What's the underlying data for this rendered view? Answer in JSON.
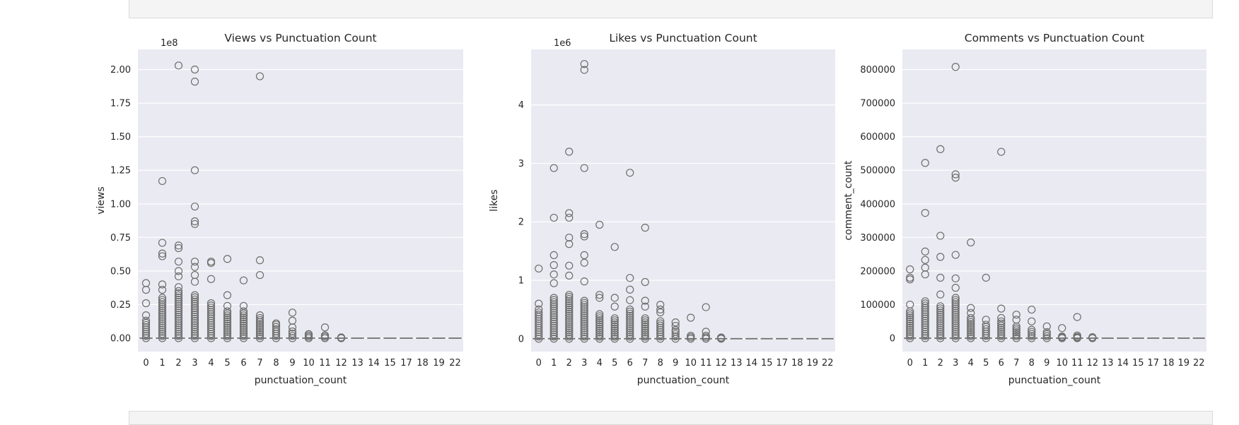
{
  "chart_data": [
    {
      "type": "boxplot",
      "title": "Views vs Punctuation Count",
      "xlabel": "punctuation_count",
      "ylabel": "views",
      "offset_label": "1e8",
      "categories": [
        "0",
        "1",
        "2",
        "3",
        "4",
        "5",
        "6",
        "7",
        "8",
        "9",
        "10",
        "11",
        "12",
        "13",
        "14",
        "15",
        "17",
        "18",
        "19",
        "22"
      ],
      "ylim": [
        -0.1,
        2.15
      ],
      "yticks": [
        0,
        0.25,
        0.5,
        0.75,
        1.0,
        1.25,
        1.5,
        1.75,
        2.0
      ],
      "ytick_labels": [
        "0.00",
        "0.25",
        "0.50",
        "0.75",
        "1.00",
        "1.25",
        "1.50",
        "1.75",
        "2.00"
      ],
      "outlier_max": [
        0.41,
        1.17,
        2.03,
        2.0,
        0.57,
        0.59,
        0.43,
        1.95,
        0.11,
        0.19,
        0.03,
        0.08,
        0.005,
        0,
        0,
        0,
        0,
        0,
        0,
        0
      ],
      "extra_outliers": [
        [
          0,
          0.36
        ],
        [
          0,
          0.26
        ],
        [
          0,
          0.17
        ],
        [
          1,
          0.71
        ],
        [
          1,
          0.63
        ],
        [
          1,
          0.61
        ],
        [
          1,
          0.4
        ],
        [
          1,
          0.36
        ],
        [
          2,
          0.69
        ],
        [
          2,
          0.67
        ],
        [
          2,
          0.57
        ],
        [
          2,
          0.5
        ],
        [
          2,
          0.46
        ],
        [
          2,
          0.38
        ],
        [
          3,
          1.91
        ],
        [
          3,
          1.25
        ],
        [
          3,
          0.98
        ],
        [
          3,
          0.87
        ],
        [
          3,
          0.85
        ],
        [
          3,
          0.57
        ],
        [
          3,
          0.53
        ],
        [
          3,
          0.47
        ],
        [
          3,
          0.42
        ],
        [
          4,
          0.56
        ],
        [
          4,
          0.44
        ],
        [
          5,
          0.32
        ],
        [
          5,
          0.24
        ],
        [
          6,
          0.24
        ],
        [
          7,
          0.58
        ],
        [
          7,
          0.47
        ],
        [
          7,
          0.17
        ],
        [
          9,
          0.13
        ],
        [
          9,
          0.08
        ],
        [
          11,
          0.02
        ]
      ],
      "dense_top": [
        0.13,
        0.3,
        0.35,
        0.32,
        0.26,
        0.2,
        0.2,
        0.15,
        0.1,
        0.05,
        0.02,
        0.02,
        0.005,
        0,
        0,
        0,
        0,
        0,
        0,
        0
      ]
    },
    {
      "type": "boxplot",
      "title": "Likes vs Punctuation Count",
      "xlabel": "punctuation_count",
      "ylabel": "likes",
      "offset_label": "1e6",
      "categories": [
        "0",
        "1",
        "2",
        "3",
        "4",
        "5",
        "6",
        "7",
        "8",
        "9",
        "10",
        "11",
        "12",
        "13",
        "14",
        "15",
        "17",
        "18",
        "19",
        "22"
      ],
      "ylim": [
        -0.22,
        4.95
      ],
      "yticks": [
        0,
        1,
        2,
        3,
        4
      ],
      "ytick_labels": [
        "0",
        "1",
        "2",
        "3",
        "4"
      ],
      "outlier_max": [
        1.2,
        2.92,
        3.2,
        4.7,
        1.95,
        1.57,
        2.84,
        1.9,
        0.58,
        0.28,
        0.36,
        0.54,
        0.02,
        0,
        0,
        0,
        0,
        0,
        0,
        0
      ],
      "extra_outliers": [
        [
          0,
          0.6
        ],
        [
          0,
          0.5
        ],
        [
          1,
          2.07
        ],
        [
          1,
          1.43
        ],
        [
          1,
          1.26
        ],
        [
          1,
          1.1
        ],
        [
          1,
          0.95
        ],
        [
          2,
          2.15
        ],
        [
          2,
          2.07
        ],
        [
          2,
          1.73
        ],
        [
          2,
          1.62
        ],
        [
          2,
          1.25
        ],
        [
          2,
          1.08
        ],
        [
          3,
          4.6
        ],
        [
          3,
          2.92
        ],
        [
          3,
          1.79
        ],
        [
          3,
          1.75
        ],
        [
          3,
          1.43
        ],
        [
          3,
          1.3
        ],
        [
          3,
          0.98
        ],
        [
          4,
          0.75
        ],
        [
          4,
          0.7
        ],
        [
          5,
          0.7
        ],
        [
          5,
          0.55
        ],
        [
          6,
          1.04
        ],
        [
          6,
          0.84
        ],
        [
          6,
          0.66
        ],
        [
          7,
          0.97
        ],
        [
          7,
          0.65
        ],
        [
          7,
          0.55
        ],
        [
          8,
          0.5
        ],
        [
          8,
          0.45
        ],
        [
          9,
          0.22
        ],
        [
          9,
          0.15
        ],
        [
          11,
          0.12
        ]
      ],
      "dense_top": [
        0.45,
        0.7,
        0.75,
        0.65,
        0.42,
        0.35,
        0.5,
        0.35,
        0.3,
        0.12,
        0.05,
        0.05,
        0.02,
        0,
        0,
        0,
        0,
        0,
        0,
        0
      ]
    },
    {
      "type": "boxplot",
      "title": "Comments vs Punctuation Count",
      "xlabel": "punctuation_count",
      "ylabel": "comment_count",
      "offset_label": "",
      "categories": [
        "0",
        "1",
        "2",
        "3",
        "4",
        "5",
        "6",
        "7",
        "8",
        "9",
        "10",
        "11",
        "12",
        "13",
        "14",
        "15",
        "17",
        "18",
        "19",
        "22"
      ],
      "ylim": [
        -40000,
        860000
      ],
      "yticks": [
        0,
        100000,
        200000,
        300000,
        400000,
        500000,
        600000,
        700000,
        800000
      ],
      "ytick_labels": [
        "0",
        "100000",
        "200000",
        "300000",
        "400000",
        "500000",
        "600000",
        "700000",
        "800000"
      ],
      "outlier_max": [
        205000,
        522000,
        563000,
        808000,
        285000,
        180000,
        555000,
        70000,
        85000,
        35000,
        30000,
        63000,
        3000,
        0,
        0,
        0,
        0,
        0,
        0,
        0
      ],
      "extra_outliers": [
        [
          0,
          180000
        ],
        [
          0,
          175000
        ],
        [
          0,
          100000
        ],
        [
          1,
          373000
        ],
        [
          1,
          258000
        ],
        [
          1,
          233000
        ],
        [
          1,
          210000
        ],
        [
          1,
          190000
        ],
        [
          2,
          305000
        ],
        [
          2,
          242000
        ],
        [
          2,
          180000
        ],
        [
          2,
          130000
        ],
        [
          3,
          488000
        ],
        [
          3,
          478000
        ],
        [
          3,
          248000
        ],
        [
          3,
          178000
        ],
        [
          3,
          150000
        ],
        [
          4,
          90000
        ],
        [
          4,
          75000
        ],
        [
          5,
          55000
        ],
        [
          6,
          88000
        ],
        [
          6,
          60000
        ],
        [
          7,
          55000
        ],
        [
          8,
          50000
        ],
        [
          9,
          18000
        ],
        [
          11,
          8000
        ]
      ],
      "dense_top": [
        80000,
        110000,
        95000,
        120000,
        60000,
        40000,
        50000,
        35000,
        25000,
        12000,
        5000,
        4000,
        2000,
        0,
        0,
        0,
        0,
        0,
        0,
        0
      ]
    }
  ]
}
